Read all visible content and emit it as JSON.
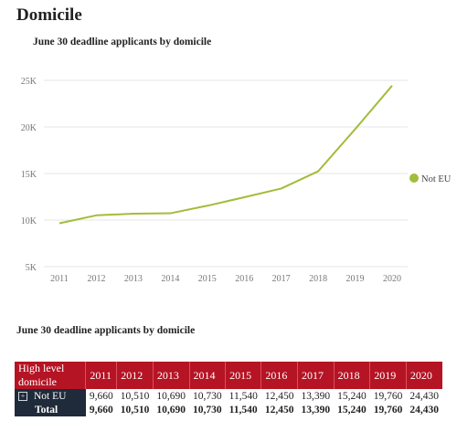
{
  "page_title": "Domicile",
  "chart_title": "June 30 deadline applicants by domicile",
  "section_title": "June 30 deadline applicants by domicile",
  "colors": {
    "line": "#a2bd3a",
    "header_bg": "#b51424",
    "row_label_bg": "#1f2a3a"
  },
  "chart_data": {
    "type": "line",
    "title": "June 30 deadline applicants by domicile",
    "xlabel": "",
    "ylabel": "",
    "x": [
      2011,
      2012,
      2013,
      2014,
      2015,
      2016,
      2017,
      2018,
      2019,
      2020
    ],
    "ylim": [
      5000,
      25000
    ],
    "y_ticks": [
      5000,
      10000,
      15000,
      20000,
      25000
    ],
    "y_tick_labels": [
      "5K",
      "10K",
      "15K",
      "20K",
      "25K"
    ],
    "grid": true,
    "legend_position": "right",
    "series": [
      {
        "name": "Not EU",
        "values": [
          9660,
          10510,
          10690,
          10730,
          11540,
          12450,
          13390,
          15240,
          19760,
          24430
        ]
      }
    ]
  },
  "table": {
    "header_label": "High level domicile",
    "years": [
      "2011",
      "2012",
      "2013",
      "2014",
      "2015",
      "2016",
      "2017",
      "2018",
      "2019",
      "2020"
    ],
    "expand_symbol": "+",
    "rows": [
      {
        "label": "Not EU",
        "values": [
          "9,660",
          "10,510",
          "10,690",
          "10,730",
          "11,540",
          "12,450",
          "13,390",
          "15,240",
          "19,760",
          "24,430"
        ]
      }
    ],
    "total": {
      "label": "Total",
      "values": [
        "9,660",
        "10,510",
        "10,690",
        "10,730",
        "11,540",
        "12,450",
        "13,390",
        "15,240",
        "19,760",
        "24,430"
      ]
    }
  }
}
